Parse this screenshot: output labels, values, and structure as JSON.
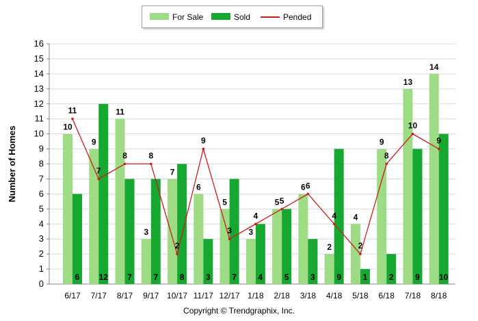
{
  "legend": {
    "for_sale": "For Sale",
    "sold": "Sold",
    "pended": "Pended"
  },
  "copyright": "Copyright © Trendgraphix, Inc.",
  "colors": {
    "for_sale": "#9ddc85",
    "sold": "#17a832",
    "pended": "#cc1a1a",
    "gridline": "#d9d9d9",
    "axis": "#808080"
  },
  "chart_data": {
    "type": "bar",
    "ylabel": "Number of Homes",
    "xlabel": "",
    "ylim": [
      0,
      16
    ],
    "yticks": [
      0,
      1,
      2,
      3,
      4,
      5,
      6,
      7,
      8,
      9,
      10,
      11,
      12,
      13,
      14,
      15,
      16
    ],
    "grid": true,
    "legend_position": "top",
    "categories": [
      "6/17",
      "7/17",
      "8/17",
      "9/17",
      "10/17",
      "11/17",
      "12/17",
      "1/18",
      "2/18",
      "3/18",
      "4/18",
      "5/18",
      "6/18",
      "7/18",
      "8/18"
    ],
    "series": [
      {
        "name": "For Sale",
        "kind": "bar",
        "values": [
          10,
          9,
          11,
          3,
          7,
          6,
          5,
          3,
          5,
          6,
          2,
          4,
          9,
          13,
          14
        ]
      },
      {
        "name": "Sold",
        "kind": "bar",
        "values": [
          6,
          12,
          7,
          7,
          8,
          3,
          7,
          4,
          5,
          3,
          9,
          1,
          2,
          9,
          10
        ]
      },
      {
        "name": "Pended",
        "kind": "line",
        "values": [
          11,
          7,
          8,
          8,
          2,
          9,
          3,
          4,
          5,
          6,
          4,
          2,
          8,
          10,
          9
        ]
      }
    ]
  }
}
